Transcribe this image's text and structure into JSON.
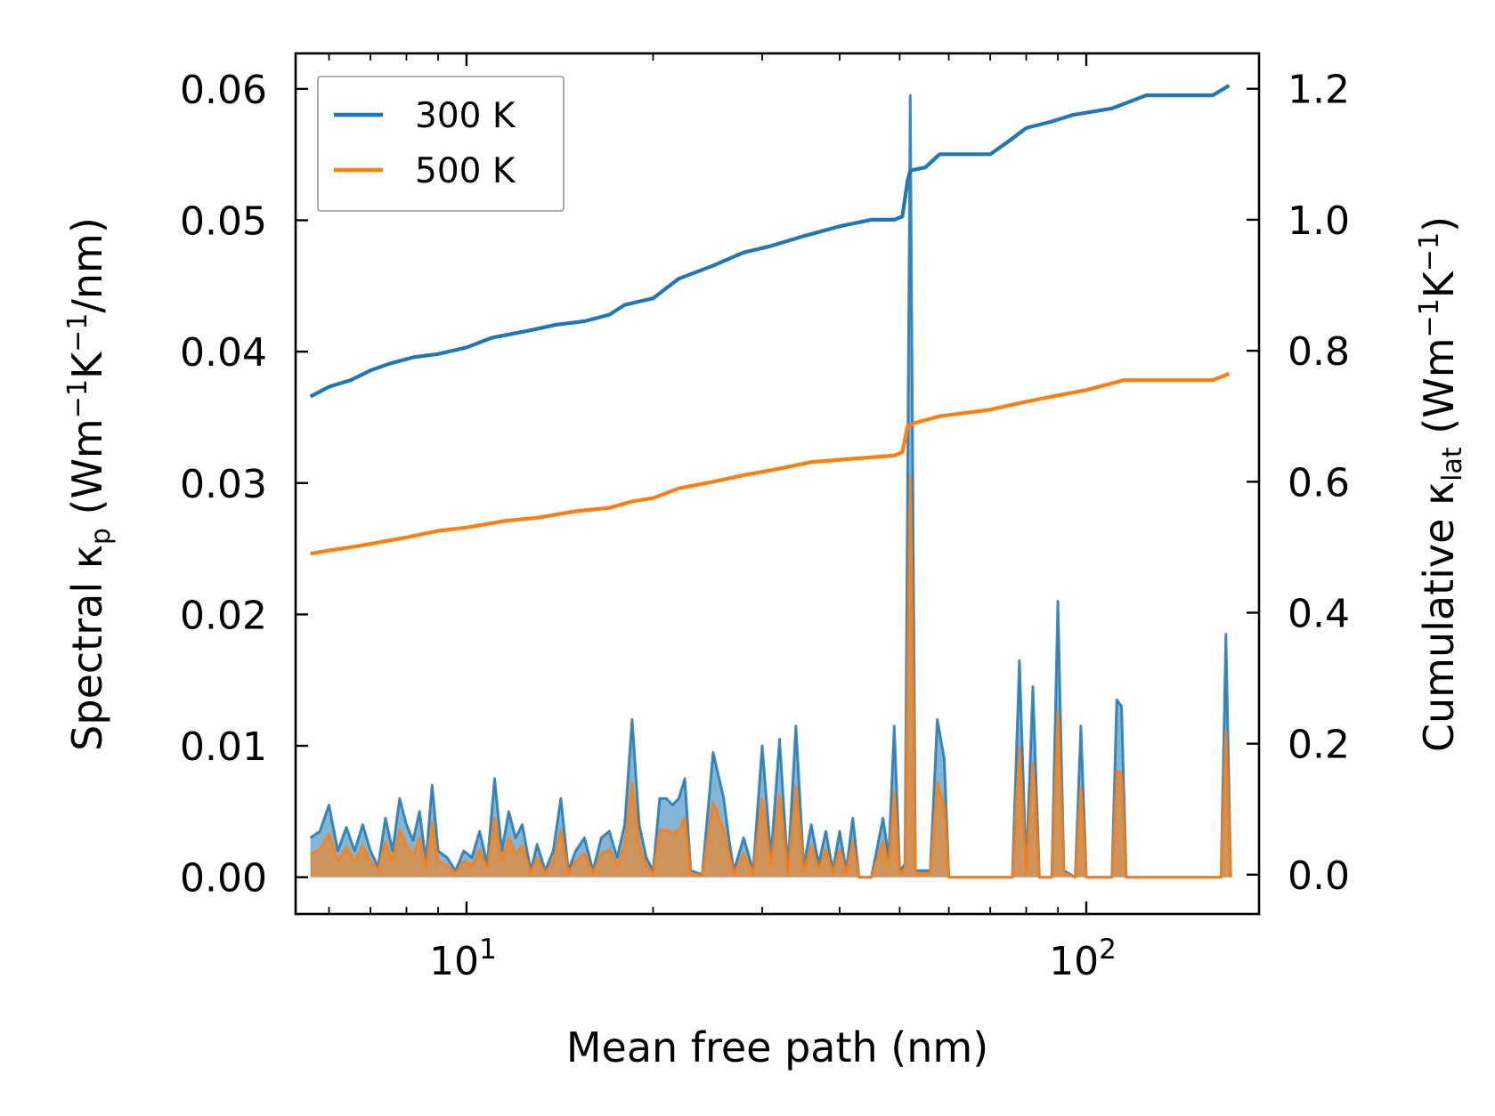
{
  "chart_data": {
    "type": "line",
    "title": "",
    "xlabel": "Mean free path (nm)",
    "xscale": "log",
    "xlim": [
      5.3,
      190
    ],
    "x_ticks": [
      {
        "value": 10,
        "base": "10",
        "exp": "1"
      },
      {
        "value": 100,
        "base": "10",
        "exp": "2"
      }
    ],
    "left_axis": {
      "label_main": "Spectral κ",
      "label_sub": "p",
      "label_units_pre": " (Wm",
      "label_sup1": "−1",
      "label_units_mid": "K",
      "label_sup2": "−1",
      "label_units_post": "/nm)",
      "ylim": [
        -0.0028,
        0.0627
      ],
      "ticks": [
        0.0,
        0.01,
        0.02,
        0.03,
        0.04,
        0.05,
        0.06
      ],
      "tick_labels": [
        "0.00",
        "0.01",
        "0.02",
        "0.03",
        "0.04",
        "0.05",
        "0.06"
      ]
    },
    "right_axis": {
      "label_main": "Cumulative κ",
      "label_sub": "lat",
      "label_units_pre": " (Wm",
      "label_sup1": "−1",
      "label_units_mid": "K",
      "label_sup2": "−1",
      "label_units_post": ")",
      "ylim": [
        -0.06,
        1.254
      ],
      "ticks": [
        0.0,
        0.2,
        0.4,
        0.6,
        0.8,
        1.0,
        1.2
      ],
      "tick_labels": [
        "0.0",
        "0.2",
        "0.4",
        "0.6",
        "0.8",
        "1.0",
        "1.2"
      ]
    },
    "legend": {
      "position": "upper-left",
      "entries": [
        {
          "name": "300 K",
          "color": "#1f77b4"
        },
        {
          "name": "500 K",
          "color": "#ff7f0e"
        }
      ]
    },
    "cumulative_series": [
      {
        "name": "300 K",
        "color": "#1f77b4",
        "points": [
          [
            5.6,
            0.73
          ],
          [
            6.0,
            0.745
          ],
          [
            6.5,
            0.755
          ],
          [
            7.0,
            0.77
          ],
          [
            7.5,
            0.78
          ],
          [
            8.2,
            0.79
          ],
          [
            9.0,
            0.795
          ],
          [
            10.0,
            0.805
          ],
          [
            11.0,
            0.82
          ],
          [
            12.5,
            0.83
          ],
          [
            14.0,
            0.84
          ],
          [
            15.5,
            0.845
          ],
          [
            17.0,
            0.855
          ],
          [
            18.0,
            0.87
          ],
          [
            20.0,
            0.88
          ],
          [
            22.0,
            0.91
          ],
          [
            25.0,
            0.93
          ],
          [
            28.0,
            0.95
          ],
          [
            31.0,
            0.96
          ],
          [
            35.0,
            0.975
          ],
          [
            40.0,
            0.99
          ],
          [
            45.0,
            1.0
          ],
          [
            49.0,
            1.0
          ],
          [
            50.5,
            1.005
          ],
          [
            51.5,
            1.06
          ],
          [
            52.0,
            1.075
          ],
          [
            55.0,
            1.08
          ],
          [
            58.0,
            1.1
          ],
          [
            70.0,
            1.1
          ],
          [
            75.0,
            1.12
          ],
          [
            80.0,
            1.14
          ],
          [
            88.0,
            1.15
          ],
          [
            95.0,
            1.16
          ],
          [
            110.0,
            1.17
          ],
          [
            125.0,
            1.19
          ],
          [
            160.0,
            1.19
          ],
          [
            170.0,
            1.205
          ]
        ]
      },
      {
        "name": "500 K",
        "color": "#ff7f0e",
        "points": [
          [
            5.6,
            0.49
          ],
          [
            6.0,
            0.495
          ],
          [
            6.5,
            0.5
          ],
          [
            7.0,
            0.505
          ],
          [
            8.0,
            0.515
          ],
          [
            9.0,
            0.525
          ],
          [
            10.0,
            0.53
          ],
          [
            11.5,
            0.54
          ],
          [
            13.0,
            0.545
          ],
          [
            15.0,
            0.555
          ],
          [
            17.0,
            0.56
          ],
          [
            18.5,
            0.57
          ],
          [
            20.0,
            0.575
          ],
          [
            22.0,
            0.59
          ],
          [
            25.0,
            0.6
          ],
          [
            28.0,
            0.61
          ],
          [
            32.0,
            0.62
          ],
          [
            36.0,
            0.63
          ],
          [
            42.0,
            0.635
          ],
          [
            49.0,
            0.64
          ],
          [
            50.5,
            0.645
          ],
          [
            51.5,
            0.685
          ],
          [
            53.0,
            0.69
          ],
          [
            58.0,
            0.7
          ],
          [
            70.0,
            0.71
          ],
          [
            78.0,
            0.72
          ],
          [
            88.0,
            0.73
          ],
          [
            100.0,
            0.74
          ],
          [
            115.0,
            0.755
          ],
          [
            160.0,
            0.755
          ],
          [
            170.0,
            0.765
          ]
        ]
      }
    ],
    "spectral_series": [
      {
        "name": "300 K",
        "color": "#1f77b4",
        "points": [
          [
            5.6,
            0.003
          ],
          [
            5.8,
            0.0035
          ],
          [
            6.0,
            0.0055
          ],
          [
            6.2,
            0.002
          ],
          [
            6.4,
            0.0038
          ],
          [
            6.6,
            0.002
          ],
          [
            6.8,
            0.004
          ],
          [
            7.0,
            0.002
          ],
          [
            7.2,
            0.0008
          ],
          [
            7.4,
            0.0045
          ],
          [
            7.6,
            0.002
          ],
          [
            7.8,
            0.006
          ],
          [
            8.0,
            0.004
          ],
          [
            8.2,
            0.0028
          ],
          [
            8.4,
            0.005
          ],
          [
            8.6,
            0.0012
          ],
          [
            8.8,
            0.007
          ],
          [
            9.0,
            0.002
          ],
          [
            9.3,
            0.0015
          ],
          [
            9.6,
            0.0005
          ],
          [
            9.9,
            0.002
          ],
          [
            10.2,
            0.0015
          ],
          [
            10.5,
            0.0035
          ],
          [
            10.8,
            0.001
          ],
          [
            11.1,
            0.0075
          ],
          [
            11.4,
            0.002
          ],
          [
            11.7,
            0.005
          ],
          [
            12.0,
            0.003
          ],
          [
            12.3,
            0.004
          ],
          [
            12.7,
            0.0005
          ],
          [
            13.0,
            0.0025
          ],
          [
            13.4,
            0.0005
          ],
          [
            13.8,
            0.002
          ],
          [
            14.2,
            0.006
          ],
          [
            14.6,
            0.0005
          ],
          [
            15.0,
            0.002
          ],
          [
            15.5,
            0.003
          ],
          [
            16.0,
            0.0005
          ],
          [
            16.5,
            0.003
          ],
          [
            17.0,
            0.0035
          ],
          [
            17.5,
            0.0015
          ],
          [
            18.0,
            0.004
          ],
          [
            18.5,
            0.012
          ],
          [
            19.0,
            0.004
          ],
          [
            19.5,
            0.0015
          ],
          [
            20.0,
            0.0005
          ],
          [
            20.5,
            0.006
          ],
          [
            21.0,
            0.006
          ],
          [
            21.5,
            0.0055
          ],
          [
            22.0,
            0.006
          ],
          [
            22.5,
            0.0075
          ],
          [
            23.0,
            0.0005
          ],
          [
            24.0,
            0.0002
          ],
          [
            25.0,
            0.0095
          ],
          [
            26.0,
            0.006
          ],
          [
            26.5,
            0.003
          ],
          [
            27.0,
            0.0005
          ],
          [
            28.0,
            0.003
          ],
          [
            29.0,
            0.0005
          ],
          [
            30.0,
            0.01
          ],
          [
            31.0,
            0.0015
          ],
          [
            32.0,
            0.0105
          ],
          [
            33.0,
            0.0005
          ],
          [
            34.0,
            0.0115
          ],
          [
            35.0,
            0.0008
          ],
          [
            36.0,
            0.004
          ],
          [
            37.0,
            0.001
          ],
          [
            38.0,
            0.0035
          ],
          [
            39.0,
            0.0005
          ],
          [
            40.0,
            0.0035
          ],
          [
            41.0,
            0.0005
          ],
          [
            42.0,
            0.0045
          ],
          [
            43.0,
            0.0
          ],
          [
            45.0,
            0.0
          ],
          [
            47.0,
            0.0045
          ],
          [
            48.0,
            0.0015
          ],
          [
            49.0,
            0.0115
          ],
          [
            50.0,
            0.0005
          ],
          [
            51.0,
            0.001
          ],
          [
            52.0,
            0.0595
          ],
          [
            53.0,
            0.0005
          ],
          [
            56.0,
            0.0005
          ],
          [
            57.5,
            0.012
          ],
          [
            59.0,
            0.009
          ],
          [
            60.0,
            0.0
          ],
          [
            70.0,
            0.0
          ],
          [
            76.0,
            0.0
          ],
          [
            78.0,
            0.0165
          ],
          [
            80.0,
            0.0005
          ],
          [
            82.0,
            0.0145
          ],
          [
            84.0,
            0.0
          ],
          [
            88.0,
            0.0
          ],
          [
            90.0,
            0.021
          ],
          [
            92.0,
            0.0005
          ],
          [
            96.0,
            0.0
          ],
          [
            98.0,
            0.0115
          ],
          [
            100.0,
            0.0
          ],
          [
            110.0,
            0.0
          ],
          [
            112.0,
            0.0135
          ],
          [
            114.0,
            0.013
          ],
          [
            116.0,
            0.0
          ],
          [
            160.0,
            0.0
          ],
          [
            165.0,
            0.0
          ],
          [
            168.0,
            0.0185
          ],
          [
            171.0,
            0.0
          ]
        ]
      },
      {
        "name": "500 K",
        "color": "#ff7f0e",
        "points": [
          [
            5.6,
            0.0018
          ],
          [
            5.8,
            0.0021
          ],
          [
            6.0,
            0.0033
          ],
          [
            6.2,
            0.0012
          ],
          [
            6.4,
            0.0023
          ],
          [
            6.6,
            0.0012
          ],
          [
            6.8,
            0.0024
          ],
          [
            7.0,
            0.0012
          ],
          [
            7.2,
            0.0005
          ],
          [
            7.4,
            0.0027
          ],
          [
            7.6,
            0.0012
          ],
          [
            7.8,
            0.0036
          ],
          [
            8.0,
            0.0024
          ],
          [
            8.2,
            0.0017
          ],
          [
            8.4,
            0.003
          ],
          [
            8.6,
            0.0007
          ],
          [
            8.8,
            0.0042
          ],
          [
            9.0,
            0.0012
          ],
          [
            9.3,
            0.0009
          ],
          [
            9.6,
            0.0003
          ],
          [
            9.9,
            0.0012
          ],
          [
            10.2,
            0.0009
          ],
          [
            10.5,
            0.0021
          ],
          [
            10.8,
            0.0006
          ],
          [
            11.1,
            0.0045
          ],
          [
            11.4,
            0.0012
          ],
          [
            11.7,
            0.003
          ],
          [
            12.0,
            0.0018
          ],
          [
            12.3,
            0.0024
          ],
          [
            12.7,
            0.0003
          ],
          [
            13.0,
            0.0015
          ],
          [
            13.4,
            0.0003
          ],
          [
            13.8,
            0.0012
          ],
          [
            14.2,
            0.0036
          ],
          [
            14.6,
            0.0003
          ],
          [
            15.0,
            0.0012
          ],
          [
            15.5,
            0.0018
          ],
          [
            16.0,
            0.0003
          ],
          [
            16.5,
            0.0018
          ],
          [
            17.0,
            0.0021
          ],
          [
            17.5,
            0.0009
          ],
          [
            18.0,
            0.0024
          ],
          [
            18.5,
            0.0072
          ],
          [
            19.0,
            0.0024
          ],
          [
            19.5,
            0.0009
          ],
          [
            20.0,
            0.0003
          ],
          [
            20.5,
            0.0036
          ],
          [
            21.0,
            0.0036
          ],
          [
            21.5,
            0.0033
          ],
          [
            22.0,
            0.0036
          ],
          [
            22.5,
            0.0045
          ],
          [
            23.0,
            0.0003
          ],
          [
            24.0,
            0.0001
          ],
          [
            25.0,
            0.0057
          ],
          [
            26.0,
            0.0036
          ],
          [
            26.5,
            0.0018
          ],
          [
            27.0,
            0.0003
          ],
          [
            28.0,
            0.0018
          ],
          [
            29.0,
            0.0003
          ],
          [
            30.0,
            0.006
          ],
          [
            31.0,
            0.0009
          ],
          [
            32.0,
            0.0063
          ],
          [
            33.0,
            0.0003
          ],
          [
            34.0,
            0.0069
          ],
          [
            35.0,
            0.0005
          ],
          [
            36.0,
            0.0024
          ],
          [
            37.0,
            0.0006
          ],
          [
            38.0,
            0.0021
          ],
          [
            39.0,
            0.0003
          ],
          [
            40.0,
            0.0021
          ],
          [
            41.0,
            0.0003
          ],
          [
            42.0,
            0.0027
          ],
          [
            43.0,
            0.0
          ],
          [
            45.0,
            0.0
          ],
          [
            47.0,
            0.0027
          ],
          [
            48.0,
            0.0009
          ],
          [
            49.0,
            0.0065
          ],
          [
            50.0,
            0.0003
          ],
          [
            51.0,
            0.0006
          ],
          [
            52.0,
            0.0305
          ],
          [
            53.0,
            0.0003
          ],
          [
            56.0,
            0.0003
          ],
          [
            57.5,
            0.0072
          ],
          [
            59.0,
            0.0054
          ],
          [
            60.0,
            0.0
          ],
          [
            70.0,
            0.0
          ],
          [
            76.0,
            0.0
          ],
          [
            78.0,
            0.0099
          ],
          [
            80.0,
            0.0003
          ],
          [
            82.0,
            0.0087
          ],
          [
            84.0,
            0.0
          ],
          [
            88.0,
            0.0
          ],
          [
            90.0,
            0.0126
          ],
          [
            92.0,
            0.0003
          ],
          [
            96.0,
            0.0
          ],
          [
            98.0,
            0.0069
          ],
          [
            100.0,
            0.0
          ],
          [
            110.0,
            0.0
          ],
          [
            112.0,
            0.0081
          ],
          [
            114.0,
            0.0078
          ],
          [
            116.0,
            0.0
          ],
          [
            160.0,
            0.0
          ],
          [
            165.0,
            0.0
          ],
          [
            168.0,
            0.0111
          ],
          [
            171.0,
            0.0
          ]
        ]
      }
    ]
  }
}
